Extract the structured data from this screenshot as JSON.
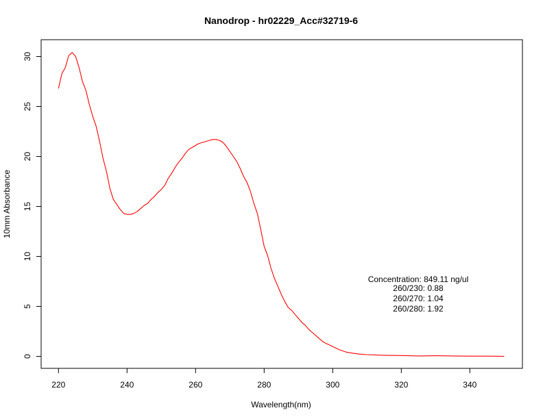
{
  "chart_data": {
    "type": "line",
    "title": "Nanodrop - hr02229_Acc#32719-6",
    "xlabel": "Wavelength(nm)",
    "ylabel": "10mm Absorbance",
    "xlim": [
      220,
      350
    ],
    "ylim": [
      0,
      30
    ],
    "x_ticks": [
      220,
      240,
      260,
      280,
      300,
      320,
      340
    ],
    "y_ticks": [
      0,
      5,
      10,
      15,
      20,
      25,
      30
    ],
    "grid": false,
    "line_color": "#ff0000",
    "series": [
      {
        "x": [
          220,
          221,
          222,
          223,
          224,
          225,
          226,
          227,
          228,
          229,
          230,
          231,
          232,
          233,
          234,
          235,
          236,
          237,
          238,
          239,
          240,
          241,
          242,
          243,
          244,
          245,
          246,
          247,
          248,
          249,
          250,
          251,
          252,
          253,
          254,
          255,
          256,
          257,
          258,
          259,
          260,
          261,
          262,
          263,
          264,
          265,
          266,
          267,
          268,
          269,
          270,
          271,
          272,
          273,
          274,
          275,
          276,
          277,
          278,
          279,
          280,
          281,
          282,
          283,
          284,
          285,
          286,
          287,
          288,
          289,
          290,
          291,
          292,
          293,
          294,
          295,
          296,
          297,
          298,
          299,
          300,
          302,
          304,
          306,
          308,
          310,
          315,
          320,
          325,
          330,
          335,
          340,
          345,
          350
        ],
        "y": [
          26.8,
          28.3,
          28.9,
          30.1,
          30.4,
          30.0,
          28.9,
          27.5,
          26.6,
          25.2,
          24.0,
          23.0,
          21.5,
          19.8,
          18.5,
          16.8,
          15.7,
          15.2,
          14.7,
          14.3,
          14.2,
          14.2,
          14.3,
          14.5,
          14.8,
          15.1,
          15.3,
          15.7,
          16.0,
          16.4,
          16.7,
          17.1,
          17.8,
          18.3,
          18.9,
          19.4,
          19.8,
          20.3,
          20.7,
          20.9,
          21.1,
          21.3,
          21.4,
          21.5,
          21.6,
          21.7,
          21.7,
          21.6,
          21.4,
          21.0,
          20.5,
          20.0,
          19.5,
          18.8,
          18.0,
          17.4,
          16.5,
          15.3,
          14.3,
          12.7,
          11.0,
          10.1,
          8.8,
          7.8,
          7.0,
          6.2,
          5.5,
          4.9,
          4.6,
          4.2,
          3.8,
          3.4,
          3.1,
          2.7,
          2.4,
          2.1,
          1.8,
          1.5,
          1.3,
          1.15,
          0.98,
          0.65,
          0.42,
          0.3,
          0.22,
          0.17,
          0.11,
          0.08,
          0.04,
          0.06,
          0.04,
          0.02,
          0.02,
          0.01
        ]
      }
    ],
    "annotations": [
      "Concentration: 849.11 ng/ul",
      "260/230: 0.88",
      "260/270: 1.04",
      "260/280: 1.92"
    ]
  }
}
